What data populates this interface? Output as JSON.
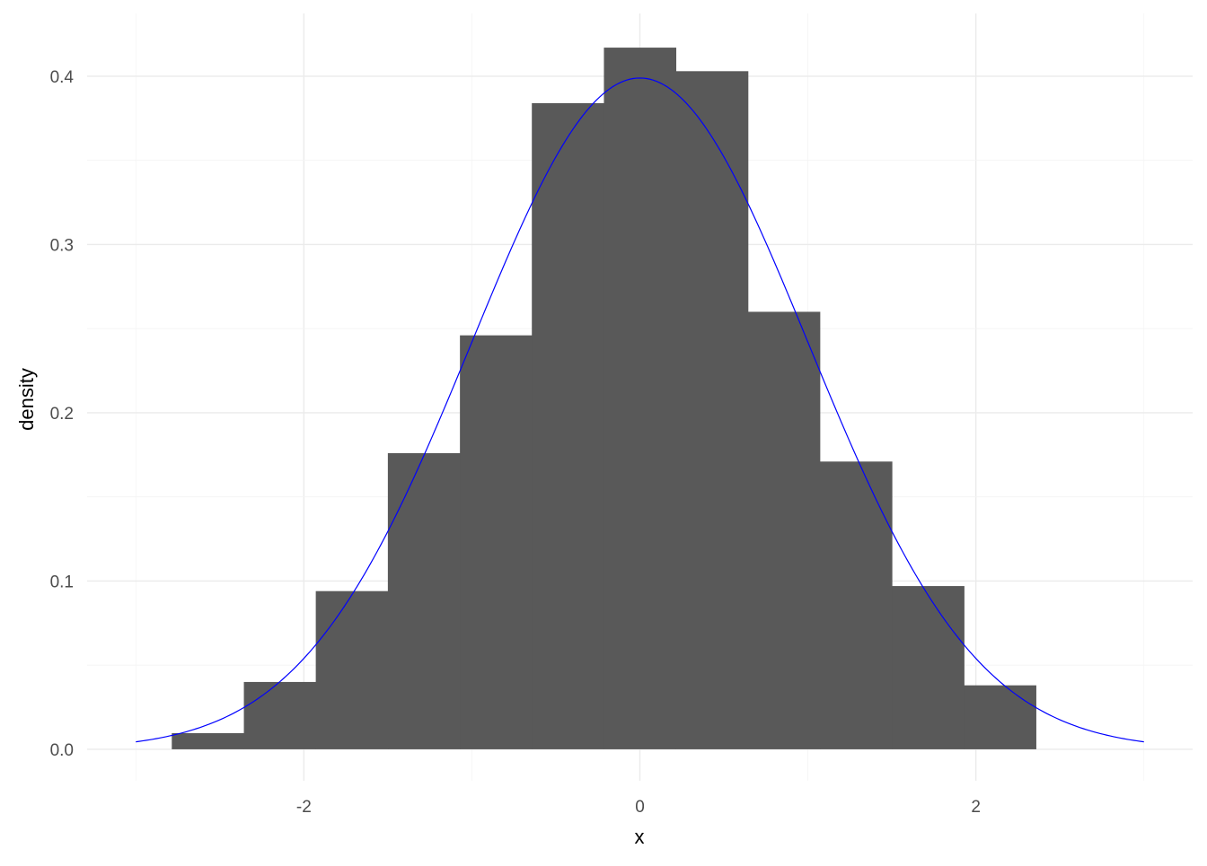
{
  "chart_data": {
    "type": "bar",
    "subtype": "histogram with density curve",
    "xlabel": "x",
    "ylabel": "density",
    "xlim": [
      -3.29,
      3.29
    ],
    "ylim": [
      -0.0187,
      0.4373
    ],
    "x_ticks": [
      -2,
      0,
      2
    ],
    "x_tick_labels": [
      "-2",
      "0",
      "2"
    ],
    "y_ticks": [
      0.0,
      0.1,
      0.2,
      0.3,
      0.4
    ],
    "y_tick_labels": [
      "0.0",
      "0.1",
      "0.2",
      "0.3",
      "0.4"
    ],
    "grid": true,
    "bins": {
      "edges": [
        -2.786,
        -2.357,
        -1.929,
        -1.5,
        -1.071,
        -0.643,
        -0.214,
        0.214,
        0.643,
        1.071,
        1.5,
        1.929,
        2.357
      ],
      "values": [
        0.0096,
        0.04,
        0.094,
        0.176,
        0.246,
        0.384,
        0.417,
        0.403,
        0.26,
        0.171,
        0.097,
        0.038
      ],
      "fill": "#595959"
    },
    "curve": {
      "function": "standard normal density",
      "x_range": [
        -3,
        3
      ],
      "color": "#0000ff"
    }
  }
}
